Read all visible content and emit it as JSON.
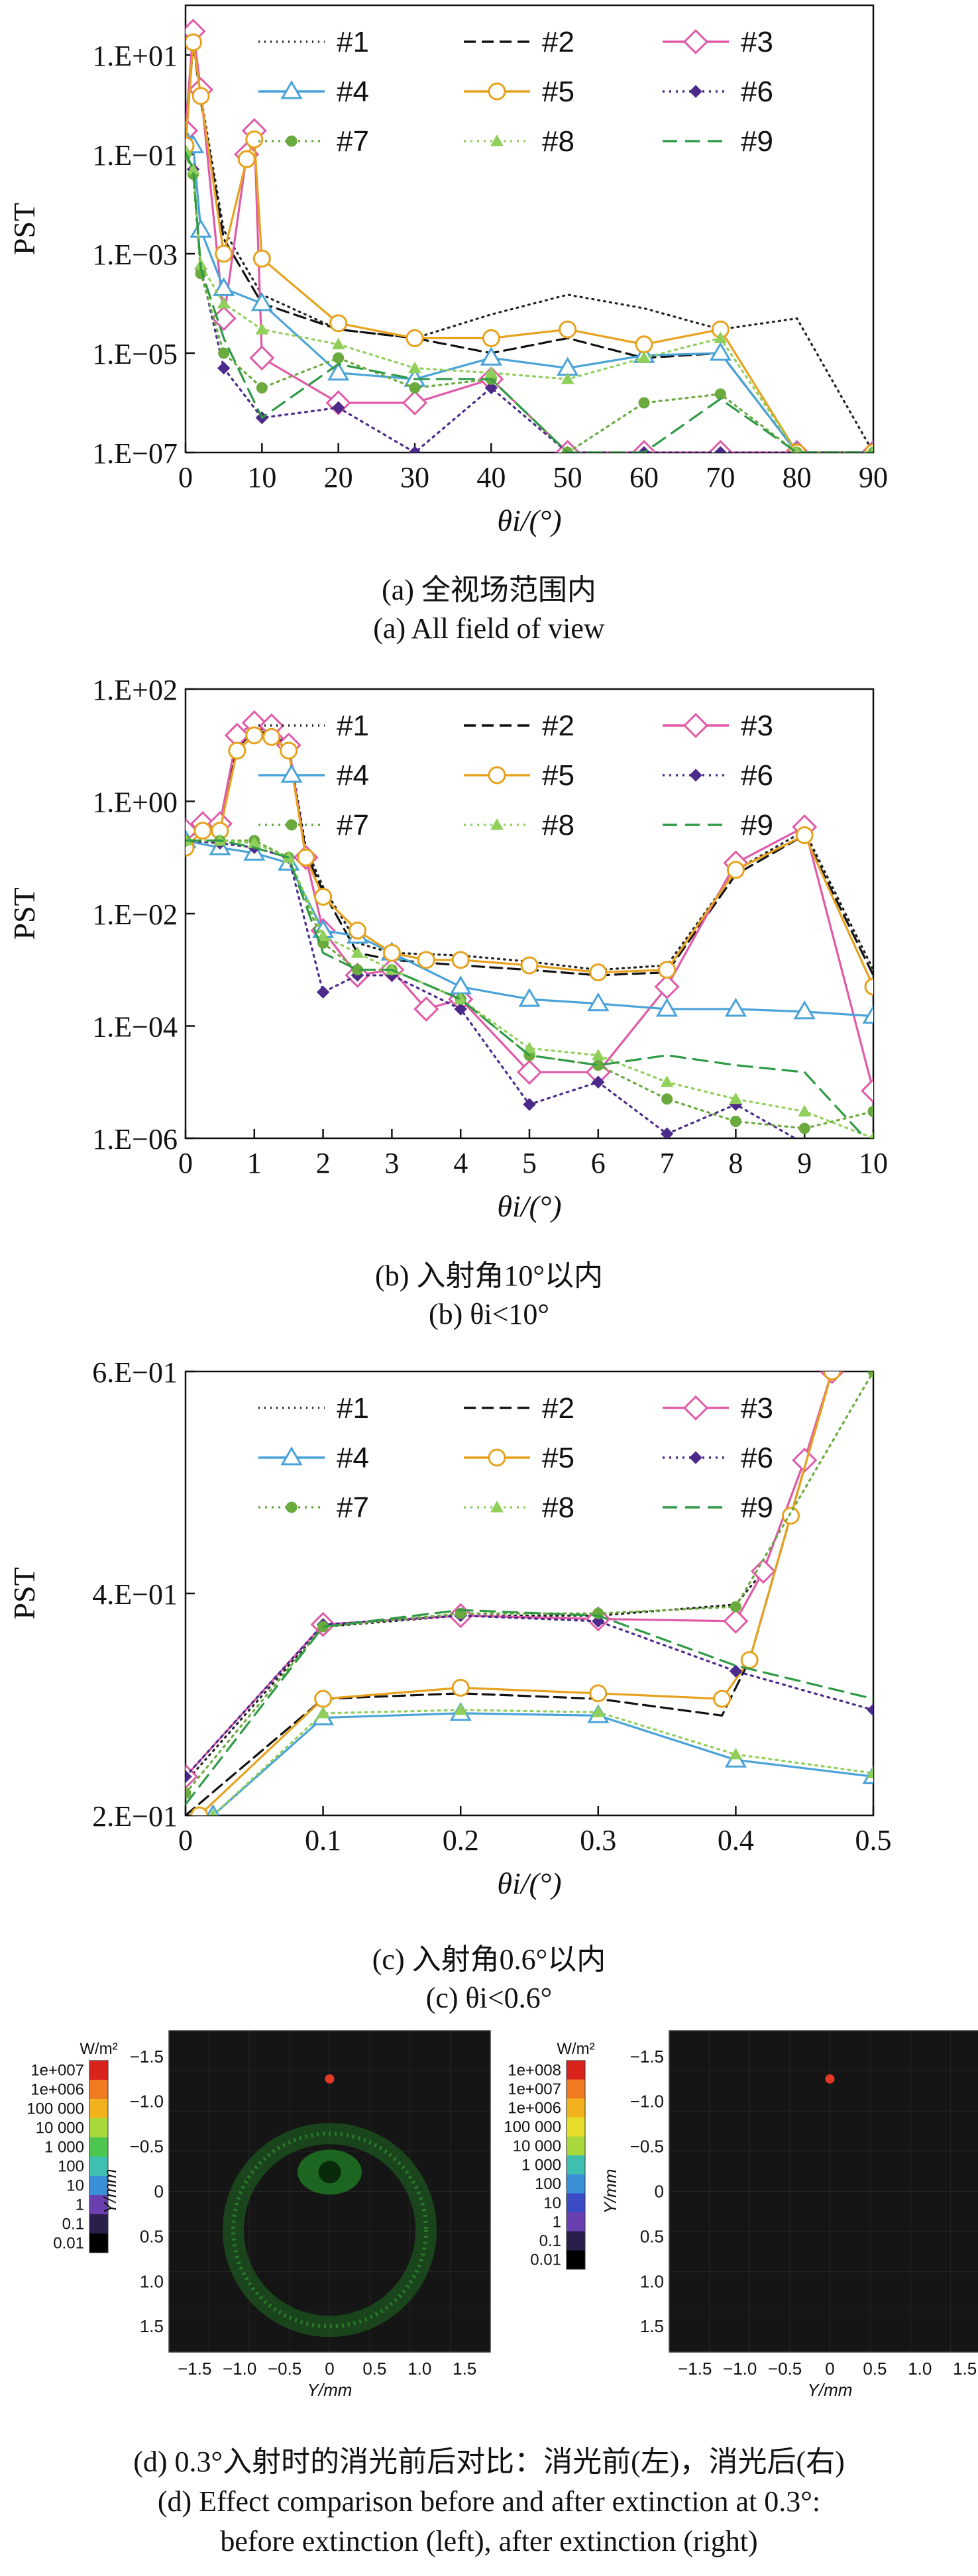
{
  "series_style": [
    {
      "name": "#1",
      "color": "#222222",
      "dash": "2,7",
      "marker": "none"
    },
    {
      "name": "#2",
      "color": "#111111",
      "dash": "18,9",
      "marker": "none"
    },
    {
      "name": "#3",
      "color": "#e05aa8",
      "dash": "",
      "marker": "diamond"
    },
    {
      "name": "#4",
      "color": "#4aa3d8",
      "dash": "",
      "marker": "triangle-open"
    },
    {
      "name": "#5",
      "color": "#e6a21e",
      "dash": "",
      "marker": "circle-open"
    },
    {
      "name": "#6",
      "color": "#4b2a8a",
      "dash": "3,7",
      "marker": "diamond-filled"
    },
    {
      "name": "#7",
      "color": "#6aaa3e",
      "dash": "3,7",
      "marker": "circle-filled"
    },
    {
      "name": "#8",
      "color": "#8fcf5a",
      "dash": "3,7",
      "marker": "triangle-filled"
    },
    {
      "name": "#9",
      "color": "#2f9a46",
      "dash": "22,12",
      "marker": "none"
    }
  ],
  "chart_data": [
    {
      "type": "line",
      "ylabel": "PST",
      "xlabel": "θi/(°)",
      "y_scale": "log",
      "ylim": [
        1e-07,
        100
      ],
      "yticks": [
        1e-07,
        1e-05,
        0.001,
        0.1,
        10
      ],
      "ytick_labels": [
        "1.E−07",
        "1.E−05",
        "1.E−03",
        "1.E−01",
        "1.E+01"
      ],
      "xlim": [
        0,
        90
      ],
      "xticks": [
        0,
        10,
        20,
        30,
        40,
        50,
        60,
        70,
        80,
        90
      ],
      "legend_position": "top-right",
      "caption_cn": "(a) 全视场范围内",
      "caption_en": "(a) All field of view",
      "series": [
        {
          "name": "#1",
          "x": [
            0,
            1,
            2,
            5,
            10,
            20,
            30,
            40,
            50,
            60,
            70,
            80,
            90
          ],
          "y": [
            0.2,
            25,
            1.5,
            0.003,
            0.00015,
            3e-05,
            2e-05,
            6e-05,
            0.00015,
            8e-05,
            3e-05,
            5e-05,
            1e-07
          ]
        },
        {
          "name": "#2",
          "x": [
            0,
            1,
            2,
            5,
            10,
            20,
            30,
            40,
            50,
            60,
            70,
            80,
            90
          ],
          "y": [
            0.15,
            18,
            1.2,
            0.002,
            0.0001,
            3e-05,
            2e-05,
            1e-05,
            2e-05,
            8e-06,
            1e-05,
            1e-07,
            1e-07
          ]
        },
        {
          "name": "#3",
          "x": [
            0,
            1,
            2,
            5,
            8,
            9,
            10,
            20,
            30,
            40,
            50,
            60,
            70,
            80,
            90
          ],
          "y": [
            0.3,
            30,
            2,
            5e-05,
            0.1,
            0.3,
            8e-06,
            1e-06,
            1e-06,
            3e-06,
            1e-07,
            1e-07,
            1e-07,
            1e-07,
            1e-07
          ]
        },
        {
          "name": "#4",
          "x": [
            0,
            1,
            2,
            5,
            10,
            20,
            30,
            40,
            50,
            60,
            70,
            80,
            90
          ],
          "y": [
            0.2,
            0.15,
            0.003,
            0.0002,
            0.0001,
            4e-06,
            3e-06,
            8e-06,
            5e-06,
            9e-06,
            1e-05,
            1e-07,
            1e-07
          ]
        },
        {
          "name": "#5",
          "x": [
            0,
            1,
            2,
            5,
            8,
            9,
            10,
            20,
            30,
            40,
            50,
            60,
            70,
            80,
            90
          ],
          "y": [
            0.15,
            18,
            1.5,
            0.001,
            0.08,
            0.2,
            0.0008,
            4e-05,
            2e-05,
            2e-05,
            3e-05,
            1.5e-05,
            3e-05,
            1e-07,
            1e-07
          ]
        },
        {
          "name": "#6",
          "x": [
            0,
            1,
            2,
            5,
            10,
            20,
            30,
            40,
            50,
            60,
            70,
            80,
            90
          ],
          "y": [
            0.1,
            0.05,
            0.0005,
            5e-06,
            5e-07,
            8e-07,
            1e-07,
            2e-06,
            1e-07,
            1e-07,
            1e-07,
            1e-07,
            1e-07
          ]
        },
        {
          "name": "#7",
          "x": [
            0,
            1,
            2,
            5,
            10,
            20,
            30,
            40,
            50,
            60,
            70,
            80,
            90
          ],
          "y": [
            0.1,
            0.04,
            0.0004,
            1e-05,
            2e-06,
            8e-06,
            2e-06,
            3e-06,
            1e-07,
            1e-06,
            1.5e-06,
            1e-07,
            1e-07
          ]
        },
        {
          "name": "#8",
          "x": [
            0,
            1,
            2,
            5,
            10,
            20,
            30,
            40,
            50,
            60,
            70,
            80,
            90
          ],
          "y": [
            0.12,
            0.05,
            0.0006,
            0.0001,
            3e-05,
            1.5e-05,
            5e-06,
            4e-06,
            3e-06,
            8e-06,
            2e-05,
            1e-07,
            1e-07
          ]
        },
        {
          "name": "#9",
          "x": [
            0,
            1,
            2,
            5,
            10,
            20,
            30,
            40,
            50,
            60,
            70,
            80,
            90
          ],
          "y": [
            0.11,
            0.05,
            0.0005,
            2e-05,
            5e-07,
            6e-06,
            3e-06,
            3e-06,
            1e-07,
            1e-07,
            1.2e-06,
            1e-07,
            1e-07
          ]
        }
      ]
    },
    {
      "type": "line",
      "ylabel": "PST",
      "xlabel": "θi/(°)",
      "y_scale": "log",
      "ylim": [
        1e-06,
        100
      ],
      "yticks": [
        1e-06,
        0.0001,
        0.01,
        1,
        100
      ],
      "ytick_labels": [
        "1.E−06",
        "1.E−04",
        "1.E−02",
        "1.E+00",
        "1.E+02"
      ],
      "xlim": [
        0,
        10
      ],
      "xticks": [
        0,
        1,
        2,
        3,
        4,
        5,
        6,
        7,
        8,
        9,
        10
      ],
      "legend_position": "top-right",
      "caption_cn": "(b) 入射角10°以内",
      "caption_en": "(b) θi<10°",
      "series": [
        {
          "name": "#1",
          "x": [
            0,
            0.25,
            0.5,
            0.75,
            1,
            1.25,
            1.5,
            1.75,
            2,
            2.5,
            3,
            4,
            5,
            6,
            7,
            8,
            9,
            10
          ],
          "y": [
            0.25,
            0.4,
            0.4,
            10,
            20,
            18,
            10,
            0.15,
            0.03,
            0.003,
            0.002,
            0.0018,
            0.0014,
            0.001,
            0.0012,
            0.06,
            0.3,
            0.001
          ]
        },
        {
          "name": "#2",
          "x": [
            0,
            0.25,
            0.5,
            0.75,
            1,
            1.25,
            1.5,
            1.75,
            2,
            2.5,
            3,
            4,
            5,
            6,
            7,
            8,
            9,
            10
          ],
          "y": [
            0.2,
            0.35,
            0.35,
            9,
            18,
            16,
            9,
            0.12,
            0.025,
            0.002,
            0.0015,
            0.0012,
            0.001,
            0.0008,
            0.0009,
            0.05,
            0.25,
            0.0008
          ]
        },
        {
          "name": "#3",
          "x": [
            0,
            0.25,
            0.5,
            0.75,
            1,
            1.25,
            1.5,
            1.75,
            2,
            2.5,
            3,
            3.5,
            4,
            5,
            6,
            7,
            8,
            9,
            10
          ],
          "y": [
            0.3,
            0.4,
            0.4,
            15,
            25,
            22,
            10,
            0.1,
            0.005,
            0.0008,
            0.001,
            0.0002,
            0.0003,
            1.5e-05,
            1.5e-05,
            0.0005,
            0.08,
            0.35,
            7e-06
          ]
        },
        {
          "name": "#4",
          "x": [
            0,
            0.5,
            1,
            1.5,
            2,
            2.5,
            3,
            4,
            5,
            6,
            7,
            8,
            9,
            10
          ],
          "y": [
            0.2,
            0.15,
            0.12,
            0.08,
            0.005,
            0.004,
            0.002,
            0.0005,
            0.0003,
            0.00025,
            0.0002,
            0.0002,
            0.00018,
            0.00015
          ]
        },
        {
          "name": "#5",
          "x": [
            0,
            0.25,
            0.5,
            0.75,
            1,
            1.25,
            1.5,
            1.75,
            2,
            2.5,
            3,
            3.5,
            4,
            5,
            6,
            7,
            8,
            9,
            10
          ],
          "y": [
            0.15,
            0.3,
            0.3,
            8,
            15,
            14,
            8,
            0.1,
            0.02,
            0.005,
            0.002,
            0.0015,
            0.0015,
            0.0012,
            0.0009,
            0.001,
            0.06,
            0.25,
            0.0005
          ]
        },
        {
          "name": "#6",
          "x": [
            0,
            0.5,
            1,
            1.5,
            2,
            2.5,
            3,
            4,
            5,
            6,
            7,
            8,
            9,
            10
          ],
          "y": [
            0.2,
            0.18,
            0.15,
            0.1,
            0.0004,
            0.0008,
            0.0008,
            0.0002,
            4e-06,
            1e-05,
            1.2e-06,
            4e-06,
            8e-07,
            5e-07
          ]
        },
        {
          "name": "#7",
          "x": [
            0,
            0.5,
            1,
            1.5,
            2,
            2.5,
            3,
            4,
            5,
            6,
            7,
            8,
            9,
            10
          ],
          "y": [
            0.2,
            0.2,
            0.2,
            0.1,
            0.003,
            0.001,
            0.001,
            0.0003,
            3e-05,
            2e-05,
            5e-06,
            2e-06,
            1.5e-06,
            3e-06
          ]
        },
        {
          "name": "#8",
          "x": [
            0,
            0.5,
            1,
            1.5,
            2,
            2.5,
            3,
            4,
            5,
            6,
            7,
            8,
            9,
            10
          ],
          "y": [
            0.2,
            0.2,
            0.18,
            0.1,
            0.004,
            0.002,
            0.001,
            0.0003,
            4e-05,
            3e-05,
            1e-05,
            5e-06,
            3e-06,
            1e-06
          ]
        },
        {
          "name": "#9",
          "x": [
            0,
            0.5,
            1,
            1.5,
            2,
            2.5,
            3,
            4,
            5,
            6,
            7,
            8,
            9,
            10
          ],
          "y": [
            0.2,
            0.2,
            0.15,
            0.1,
            0.002,
            0.001,
            0.001,
            0.0003,
            3e-05,
            2e-05,
            3e-05,
            2e-05,
            1.5e-05,
            7e-07
          ]
        }
      ]
    },
    {
      "type": "line",
      "ylabel": "PST",
      "xlabel": "θi/(°)",
      "y_scale": "linear",
      "ylim": [
        0.2,
        0.6
      ],
      "yticks": [
        0.2,
        0.4,
        0.6
      ],
      "ytick_labels": [
        "2.E−01",
        "4.E−01",
        "6.E−01"
      ],
      "xlim": [
        0,
        0.5
      ],
      "xticks": [
        0,
        0.1,
        0.2,
        0.3,
        0.4,
        0.5
      ],
      "legend_position": "top-right",
      "caption_cn": "(c) 入射角0.6°以内",
      "caption_en": "(c) θi<0.6°",
      "series": [
        {
          "name": "#1",
          "x": [
            0,
            0.1,
            0.2,
            0.3,
            0.4,
            0.42,
            0.45,
            0.47
          ],
          "y": [
            0.23,
            0.37,
            0.38,
            0.38,
            0.39,
            0.42,
            0.52,
            0.6
          ]
        },
        {
          "name": "#2",
          "x": [
            0,
            0.1,
            0.2,
            0.3,
            0.39,
            0.41,
            0.44,
            0.47
          ],
          "y": [
            0.2,
            0.305,
            0.31,
            0.305,
            0.29,
            0.34,
            0.47,
            0.6
          ]
        },
        {
          "name": "#3",
          "x": [
            0,
            0.1,
            0.2,
            0.3,
            0.4,
            0.42,
            0.45,
            0.47
          ],
          "y": [
            0.235,
            0.372,
            0.38,
            0.377,
            0.375,
            0.42,
            0.52,
            0.6
          ]
        },
        {
          "name": "#4",
          "x": [
            0.02,
            0.1,
            0.2,
            0.3,
            0.4,
            0.5
          ],
          "y": [
            0.2,
            0.288,
            0.292,
            0.29,
            0.25,
            0.235
          ]
        },
        {
          "name": "#5",
          "x": [
            0.01,
            0.1,
            0.2,
            0.3,
            0.39,
            0.41,
            0.44,
            0.47
          ],
          "y": [
            0.2,
            0.305,
            0.315,
            0.31,
            0.305,
            0.34,
            0.47,
            0.6
          ]
        },
        {
          "name": "#6",
          "x": [
            0,
            0.1,
            0.2,
            0.3,
            0.4,
            0.5
          ],
          "y": [
            0.235,
            0.372,
            0.38,
            0.375,
            0.33,
            0.295
          ]
        },
        {
          "name": "#7",
          "x": [
            0,
            0.1,
            0.2,
            0.3,
            0.4,
            0.5
          ],
          "y": [
            0.22,
            0.37,
            0.382,
            0.382,
            0.388,
            0.6
          ]
        },
        {
          "name": "#8",
          "x": [
            0.02,
            0.1,
            0.2,
            0.3,
            0.4,
            0.5
          ],
          "y": [
            0.2,
            0.292,
            0.295,
            0.293,
            0.255,
            0.238
          ]
        },
        {
          "name": "#9",
          "x": [
            0,
            0.1,
            0.2,
            0.3,
            0.4,
            0.5
          ],
          "y": [
            0.21,
            0.37,
            0.385,
            0.38,
            0.335,
            0.305
          ]
        }
      ]
    }
  ],
  "heatmaps": {
    "left": {
      "unit": "W/m²",
      "scale_labels": [
        "1e+007",
        "1e+006",
        "100 000",
        "10 000",
        "1 000",
        "100",
        "10",
        "1",
        "0.1",
        "0.01"
      ],
      "axis_label": "Y/mm",
      "ticks_y": [
        "−1.5",
        "−1.0",
        "−0.5",
        "0",
        "0.5",
        "1.0",
        "1.5"
      ],
      "ticks_x": [
        "−1.5",
        "−1.0",
        "−0.5",
        "0",
        "0.5",
        "1.0",
        "1.5"
      ]
    },
    "right": {
      "unit": "W/m²",
      "scale_labels": [
        "1e+008",
        "1e+007",
        "1e+006",
        "100 000",
        "10 000",
        "1 000",
        "100",
        "10",
        "1",
        "0.1",
        "0.01"
      ],
      "axis_label": "Y/mm",
      "ticks_y": [
        "−1.5",
        "−1.0",
        "−0.5",
        "0",
        "0.5",
        "1.0",
        "1.5"
      ],
      "ticks_x": [
        "−1.5",
        "−1.0",
        "−0.5",
        "0",
        "0.5",
        "1.0",
        "1.5"
      ]
    },
    "caption_cn": "(d) 0.3°入射时的消光前后对比：消光前(左)，消光后(右)",
    "caption_en_line1": "(d) Effect comparison before and after extinction at 0.3°:",
    "caption_en_line2": "before extinction (left), after extinction (right)"
  }
}
